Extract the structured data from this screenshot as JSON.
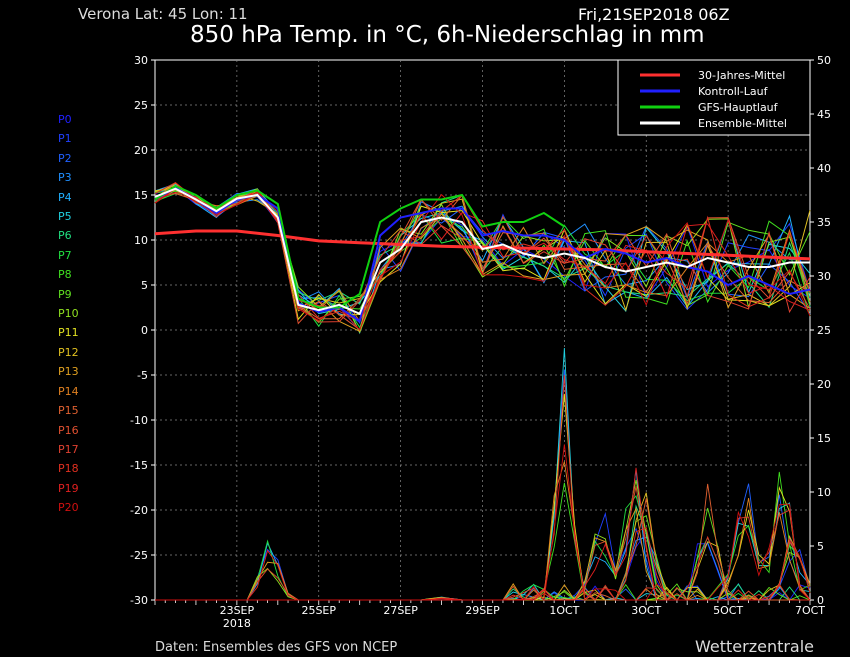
{
  "header": {
    "location": "Verona   Lat: 45 Lon: 11",
    "run": "Fri,21SEP2018 06Z",
    "title": "850 hPa Temp. in °C, 6h-Niederschlag in mm"
  },
  "footer": {
    "credit": "Daten: Ensembles des GFS von NCEP",
    "brand": "Wetterzentrale"
  },
  "members": [
    {
      "name": "P0",
      "color": "#2020ff"
    },
    {
      "name": "P1",
      "color": "#2040ff"
    },
    {
      "name": "P2",
      "color": "#2060ff"
    },
    {
      "name": "P3",
      "color": "#2090ff"
    },
    {
      "name": "P4",
      "color": "#20b0ff"
    },
    {
      "name": "P5",
      "color": "#20d0e0"
    },
    {
      "name": "P6",
      "color": "#20e080"
    },
    {
      "name": "P7",
      "color": "#20e040"
    },
    {
      "name": "P8",
      "color": "#40e020"
    },
    {
      "name": "P9",
      "color": "#60e020"
    },
    {
      "name": "P10",
      "color": "#90e020"
    },
    {
      "name": "P11",
      "color": "#e0e020"
    },
    {
      "name": "P12",
      "color": "#e0c020"
    },
    {
      "name": "P13",
      "color": "#e0a020"
    },
    {
      "name": "P14",
      "color": "#e08020"
    },
    {
      "name": "P15",
      "color": "#e06030"
    },
    {
      "name": "P16",
      "color": "#e05030"
    },
    {
      "name": "P17",
      "color": "#e04030"
    },
    {
      "name": "P18",
      "color": "#e03020"
    },
    {
      "name": "P19",
      "color": "#e02020"
    },
    {
      "name": "P20",
      "color": "#d01010"
    }
  ],
  "legend": [
    {
      "label": "30-Jahres-Mittel",
      "color": "#ff3030"
    },
    {
      "label": "Kontroll-Lauf",
      "color": "#2020ff"
    },
    {
      "label": "GFS-Hauptlauf",
      "color": "#10d010"
    },
    {
      "label": "Ensemble-Mittel",
      "color": "#ffffff"
    }
  ],
  "chart_data": {
    "type": "line",
    "x_tick_labels": [
      "23SEP\n2018",
      "25SEP",
      "27SEP",
      "29SEP",
      "1OCT",
      "3OCT",
      "5OCT",
      "7OCT"
    ],
    "x_days_range": [
      0,
      16
    ],
    "ylim_left": [
      -30,
      30
    ],
    "yticks_left": [
      30,
      25,
      20,
      15,
      10,
      5,
      0,
      -5,
      -10,
      -15,
      -20,
      -25,
      -30
    ],
    "ylim_right": [
      0,
      50
    ],
    "yticks_right": [
      50,
      45,
      40,
      35,
      30,
      25,
      20,
      15,
      10,
      5,
      0
    ],
    "grid": true,
    "legend_position": "top-right",
    "series": [
      {
        "name": "30-Jahres-Mittel",
        "axis": "left",
        "color": "#ff3030",
        "x": [
          0,
          1,
          2,
          3,
          4,
          5,
          6,
          7,
          8,
          9,
          10,
          11,
          12,
          13,
          14,
          15,
          16
        ],
        "values": [
          10.7,
          11.0,
          11.0,
          10.5,
          9.9,
          9.7,
          9.5,
          9.3,
          9.2,
          9.1,
          9.0,
          8.9,
          8.7,
          8.5,
          8.3,
          8.1,
          7.9
        ]
      },
      {
        "name": "Kontroll-Lauf",
        "axis": "left",
        "color": "#2020ff",
        "x": [
          0,
          0.5,
          1,
          1.5,
          2,
          2.5,
          3,
          3.5,
          4,
          4.5,
          5,
          5.5,
          6,
          6.5,
          7,
          7.5,
          8,
          8.5,
          9,
          9.5,
          10,
          10.5,
          11,
          11.5,
          12,
          12.5,
          13,
          13.5,
          14,
          14.5,
          15,
          15.5,
          16
        ],
        "values": [
          14.5,
          15.8,
          14.5,
          13.0,
          14.5,
          15.0,
          13.5,
          3.0,
          2.0,
          2.5,
          1.0,
          10.5,
          12.5,
          13.0,
          13.5,
          13.5,
          10.5,
          11.0,
          10.5,
          10.5,
          10.0,
          8.0,
          9.0,
          8.5,
          7.5,
          8.0,
          7.0,
          6.5,
          5.0,
          6.0,
          5.0,
          4.0,
          4.5
        ]
      },
      {
        "name": "GFS-Hauptlauf",
        "axis": "left",
        "color": "#10d010",
        "x": [
          0,
          0.5,
          1,
          1.5,
          2,
          2.5,
          3,
          3.5,
          4,
          4.5,
          5,
          5.5,
          6,
          6.5,
          7,
          7.5,
          8,
          8.5,
          9,
          9.5,
          10
        ],
        "values": [
          14.5,
          16.0,
          15.0,
          13.5,
          15.0,
          15.5,
          14.0,
          3.5,
          2.5,
          2.5,
          4.0,
          12.0,
          13.5,
          14.5,
          14.5,
          15.0,
          11.5,
          12.0,
          12.0,
          13.0,
          11.5
        ]
      },
      {
        "name": "Ensemble-Mittel",
        "axis": "left",
        "color": "#ffffff",
        "x": [
          0,
          0.5,
          1,
          1.5,
          2,
          2.5,
          3,
          3.5,
          4,
          4.5,
          5,
          5.5,
          6,
          6.5,
          7,
          7.5,
          8,
          8.5,
          9,
          9.5,
          10,
          10.5,
          11,
          11.5,
          12,
          12.5,
          13,
          13.5,
          14,
          14.5,
          15,
          15.5,
          16
        ],
        "values": [
          14.8,
          15.7,
          14.5,
          13.2,
          14.6,
          15.0,
          12.5,
          2.8,
          2.2,
          2.8,
          1.8,
          7.5,
          9.0,
          12.0,
          12.5,
          12.0,
          9.0,
          9.5,
          8.5,
          8.0,
          8.5,
          8.0,
          7.0,
          6.5,
          7.0,
          7.5,
          7.0,
          8.0,
          7.5,
          7.0,
          7.0,
          7.5,
          7.5
        ]
      }
    ],
    "precip_peaks_mm": [
      {
        "x": 2.8,
        "mm": 6.5
      },
      {
        "x": 7.0,
        "mm": 0.3
      },
      {
        "x": 10.0,
        "mm": 24.0
      },
      {
        "x": 10.9,
        "mm": 10.0
      },
      {
        "x": 11.7,
        "mm": 16.0
      },
      {
        "x": 11.9,
        "mm": 13.5
      },
      {
        "x": 13.5,
        "mm": 11.0
      },
      {
        "x": 14.4,
        "mm": 14.0
      },
      {
        "x": 15.3,
        "mm": 15.0
      },
      {
        "x": 15.6,
        "mm": 7.5
      }
    ]
  }
}
